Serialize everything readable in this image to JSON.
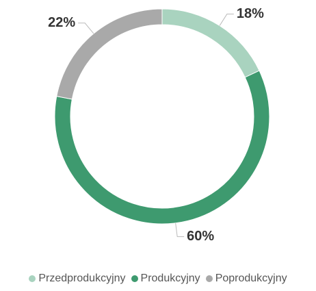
{
  "chart_data": {
    "type": "donut",
    "categories": [
      "Przedprodukcyjny",
      "Produkcyjny",
      "Poprodukcyjny"
    ],
    "values": [
      18,
      60,
      22
    ],
    "value_labels": [
      "18%",
      "60%",
      "22%"
    ],
    "colors": [
      "#a9d3bf",
      "#3e9a6f",
      "#a9a9a9"
    ]
  }
}
